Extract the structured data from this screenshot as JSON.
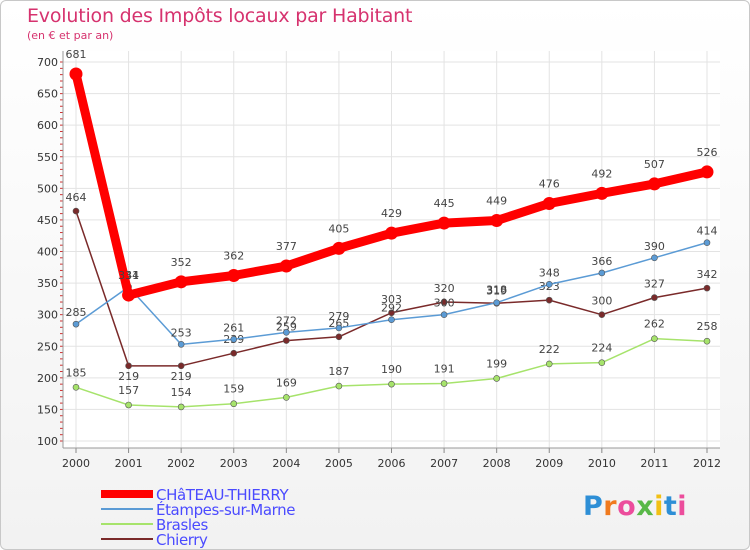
{
  "header": {
    "title": "Evolution des Impôts locaux par Habitant",
    "subtitle": "(en € et par an)"
  },
  "logo": {
    "text": "Proxiti",
    "colors": [
      "#2e8fd6",
      "#f07a1e",
      "#ec4d9c",
      "#58b848",
      "#f2c014",
      "#2e8fd6",
      "#ec4d9c"
    ]
  },
  "chart_data": {
    "type": "line",
    "x": [
      "2000",
      "2001",
      "2002",
      "2003",
      "2004",
      "2005",
      "2006",
      "2007",
      "2008",
      "2009",
      "2010",
      "2011",
      "2012"
    ],
    "ylim": [
      100,
      700
    ],
    "yticks": [
      100,
      150,
      200,
      250,
      300,
      350,
      400,
      450,
      500,
      550,
      600,
      650,
      700
    ],
    "grid": true,
    "legend_position": "bottom-left",
    "series": [
      {
        "name": "CHâTEAU-THIERRY",
        "color": "#ff0000",
        "values": [
          681,
          331,
          352,
          362,
          377,
          405,
          429,
          445,
          449,
          476,
          492,
          507,
          526
        ]
      },
      {
        "name": "Étampes-sur-Marne",
        "color": "#5b9bd5",
        "values": [
          285,
          344,
          253,
          261,
          272,
          279,
          292,
          300,
          319,
          348,
          366,
          390,
          414
        ]
      },
      {
        "name": "Brasles",
        "color": "#a6e36b",
        "values": [
          185,
          157,
          154,
          159,
          169,
          187,
          190,
          191,
          199,
          222,
          224,
          262,
          258
        ]
      },
      {
        "name": "Chierry",
        "color": "#7a2a2a",
        "values": [
          464,
          219,
          219,
          239,
          259,
          265,
          303,
          320,
          318,
          323,
          300,
          327,
          342
        ]
      }
    ]
  }
}
